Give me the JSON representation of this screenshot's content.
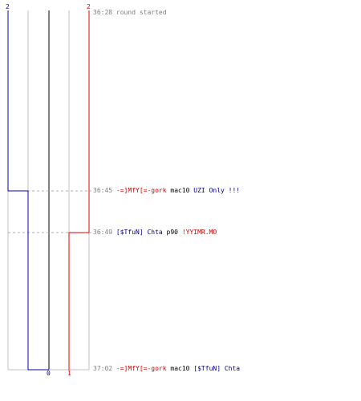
{
  "scores": {
    "blue_start": "2",
    "red_start": "2",
    "blue_end": "0",
    "red_end": "1"
  },
  "colors": {
    "blue": "#0000aa",
    "red": "#dd0000",
    "grid": "#c0c0c0",
    "center": "#808080",
    "dash": "#b0b0b0"
  },
  "events": [
    {
      "time": "36:28",
      "parts": [
        {
          "text": "round started",
          "style": "plain"
        }
      ]
    },
    {
      "time": "36:45",
      "parts": [
        {
          "text": "-=]MfY[=-gork",
          "style": "red"
        },
        {
          "text": "mac10",
          "style": "black"
        },
        {
          "text": "UZI Only !!!",
          "style": "blue"
        }
      ]
    },
    {
      "time": "36:49",
      "parts": [
        {
          "text": "[$TfuN] Chta",
          "style": "blue"
        },
        {
          "text": "p90",
          "style": "black"
        },
        {
          "text": "!YYIMR.MO",
          "style": "red"
        }
      ]
    },
    {
      "time": "37:02",
      "parts": [
        {
          "text": "-=]MfY[=-gork",
          "style": "red"
        },
        {
          "text": "mac10",
          "style": "black"
        },
        {
          "text": "[$TfuN] Chta",
          "style": "blue"
        }
      ]
    }
  ]
}
